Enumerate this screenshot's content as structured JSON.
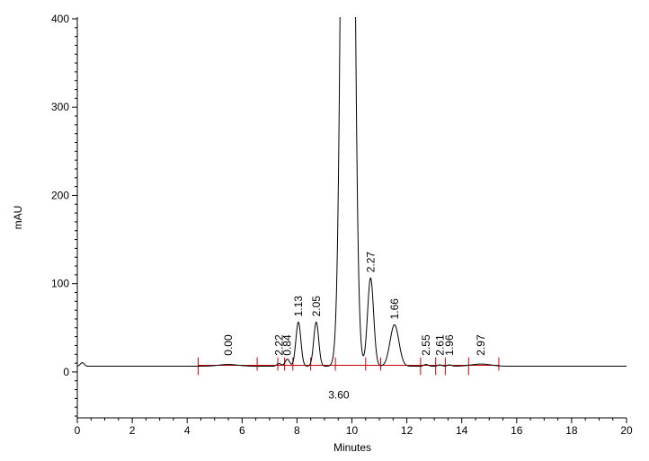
{
  "chart_data": {
    "type": "line",
    "xlabel": "Minutes",
    "ylabel": "mAU",
    "xlim": [
      0,
      20
    ],
    "ylim": [
      -52,
      402
    ],
    "x_ticks": [
      0,
      2,
      4,
      6,
      8,
      10,
      12,
      14,
      16,
      18,
      20
    ],
    "y_ticks": [
      0,
      100,
      200,
      300,
      400
    ],
    "baseline": 6.5,
    "peaks": [
      {
        "rt": 5.5,
        "height": 2,
        "width": 0.35,
        "label": "0.00"
      },
      {
        "rt": 7.35,
        "height": 3,
        "width": 0.08,
        "label": "2.22"
      },
      {
        "rt": 7.65,
        "height": 8,
        "width": 0.08,
        "label": "0.84"
      },
      {
        "rt": 8.05,
        "height": 50,
        "width": 0.09,
        "label": "1.13"
      },
      {
        "rt": 8.7,
        "height": 50,
        "width": 0.09,
        "label": "2.05"
      },
      {
        "rt": 9.85,
        "height": 1600,
        "width": 0.17,
        "label": "3.60"
      },
      {
        "rt": 10.68,
        "height": 100,
        "width": 0.11,
        "label": "2.27"
      },
      {
        "rt": 11.55,
        "height": 47,
        "width": 0.16,
        "label": "1.66"
      },
      {
        "rt": 12.7,
        "height": 2,
        "width": 0.08,
        "label": "2.55"
      },
      {
        "rt": 13.2,
        "height": 1.5,
        "width": 0.08,
        "label": "2.61"
      },
      {
        "rt": 13.55,
        "height": 1.5,
        "width": 0.08,
        "label": "1.96"
      },
      {
        "rt": 14.7,
        "height": 2.5,
        "width": 0.35,
        "label": "2.97"
      }
    ],
    "integration_marks": [
      4.4,
      6.55,
      7.3,
      7.55,
      7.85,
      8.5,
      9.4,
      10.5,
      11.05,
      12.5,
      13.05,
      13.4,
      14.25,
      15.35
    ]
  }
}
